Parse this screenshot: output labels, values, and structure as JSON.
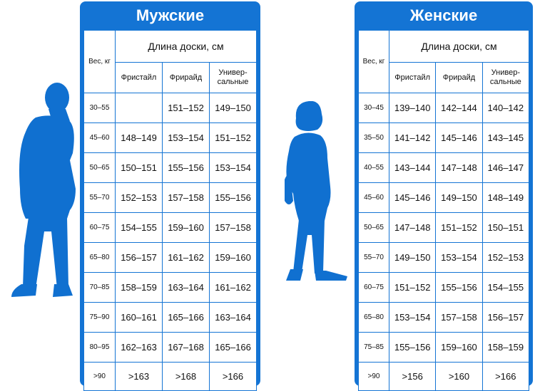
{
  "men": {
    "title": "Мужские",
    "weight_header": "Вес, кг",
    "length_header": "Длина доски, см",
    "styles": [
      "Фристайл",
      "Фрирайд",
      "Универ-сальные"
    ],
    "rows": [
      {
        "w": "30–55",
        "v": [
          "",
          "151–152",
          "149–150"
        ]
      },
      {
        "w": "45–60",
        "v": [
          "148–149",
          "153–154",
          "151–152"
        ]
      },
      {
        "w": "50–65",
        "v": [
          "150–151",
          "155–156",
          "153–154"
        ]
      },
      {
        "w": "55–70",
        "v": [
          "152–153",
          "157–158",
          "155–156"
        ]
      },
      {
        "w": "60–75",
        "v": [
          "154–155",
          "159–160",
          "157–158"
        ]
      },
      {
        "w": "65–80",
        "v": [
          "156–157",
          "161–162",
          "159–160"
        ]
      },
      {
        "w": "70–85",
        "v": [
          "158–159",
          "163–164",
          "161–162"
        ]
      },
      {
        "w": "75–90",
        "v": [
          "160–161",
          "165–166",
          "163–164"
        ]
      },
      {
        "w": "80–95",
        "v": [
          "162–163",
          "167–168",
          "165–166"
        ]
      },
      {
        "w": ">90",
        "v": [
          ">163",
          ">168",
          ">166"
        ]
      }
    ]
  },
  "women": {
    "title": "Женские",
    "weight_header": "Вес, кг",
    "length_header": "Длина доски, см",
    "styles": [
      "Фристайл",
      "Фрирайд",
      "Универ-сальные"
    ],
    "rows": [
      {
        "w": "30–45",
        "v": [
          "139–140",
          "142–144",
          "140–142"
        ]
      },
      {
        "w": "35–50",
        "v": [
          "141–142",
          "145–146",
          "143–145"
        ]
      },
      {
        "w": "40–55",
        "v": [
          "143–144",
          "147–148",
          "146–147"
        ]
      },
      {
        "w": "45–60",
        "v": [
          "145–146",
          "149–150",
          "148–149"
        ]
      },
      {
        "w": "50–65",
        "v": [
          "147–148",
          "151–152",
          "150–151"
        ]
      },
      {
        "w": "55–70",
        "v": [
          "149–150",
          "153–154",
          "152–153"
        ]
      },
      {
        "w": "60–75",
        "v": [
          "151–152",
          "155–156",
          "154–155"
        ]
      },
      {
        "w": "65–80",
        "v": [
          "153–154",
          "157–158",
          "156–157"
        ]
      },
      {
        "w": "75–85",
        "v": [
          "155–156",
          "159–160",
          "158–159"
        ]
      },
      {
        "w": ">90",
        "v": [
          ">156",
          ">160",
          ">166"
        ]
      }
    ]
  },
  "colors": {
    "accent": "#1474d4",
    "silhouette": "#1070d0"
  },
  "icons": {
    "men_figure": "man-silhouette-icon",
    "women_figure": "woman-silhouette-icon"
  }
}
